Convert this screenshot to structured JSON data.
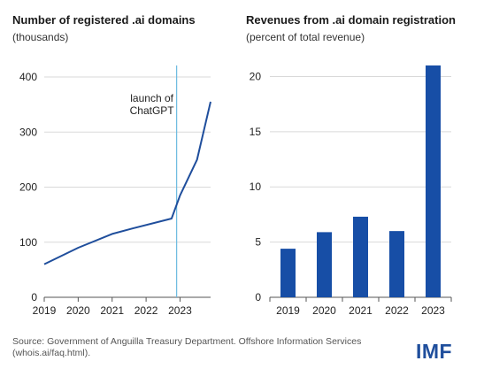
{
  "left_chart": {
    "title": "Number of registered .ai domains",
    "subtitle": "(thousands)",
    "annotation": [
      "launch of",
      "ChatGPT"
    ]
  },
  "right_chart": {
    "title": "Revenues from .ai domain registration",
    "subtitle": "(percent of total revenue)"
  },
  "footer": {
    "source": "Source: Government of Anguilla Treasury Department. Offshore Information Services (whois.ai/faq.html).",
    "logo": "IMF"
  },
  "colors": {
    "line": "#1f4e9c",
    "bar": "#174ea6",
    "annotation_line": "#6bbbe0",
    "grid": "#d9d9d9",
    "axis": "#555555"
  },
  "chart_data": [
    {
      "type": "line",
      "title": "Number of registered .ai domains",
      "ylabel": "(thousands)",
      "x": [
        2019.0,
        2020.0,
        2021.0,
        2021.6,
        2022.75,
        2023.0,
        2023.5,
        2023.9
      ],
      "y": [
        60,
        90,
        115,
        125,
        143,
        185,
        250,
        355
      ],
      "xticks": [
        "2019",
        "2020",
        "2021",
        "2022",
        "2023"
      ],
      "xtick_values": [
        2019,
        2020,
        2021,
        2022,
        2023
      ],
      "xlim": [
        2019,
        2023.9
      ],
      "yticks": [
        0,
        100,
        200,
        300,
        400
      ],
      "ylim": [
        0,
        400
      ],
      "grid": true,
      "annotation_x": 2022.9
    },
    {
      "type": "bar",
      "title": "Revenues from .ai domain registration",
      "ylabel": "(percent of total revenue)",
      "categories": [
        "2019",
        "2020",
        "2021",
        "2022",
        "2023"
      ],
      "values": [
        4.4,
        5.9,
        7.3,
        6.0,
        21.0
      ],
      "yticks": [
        0,
        5,
        10,
        15,
        20
      ],
      "ylim": [
        0,
        21
      ],
      "grid": true
    }
  ]
}
